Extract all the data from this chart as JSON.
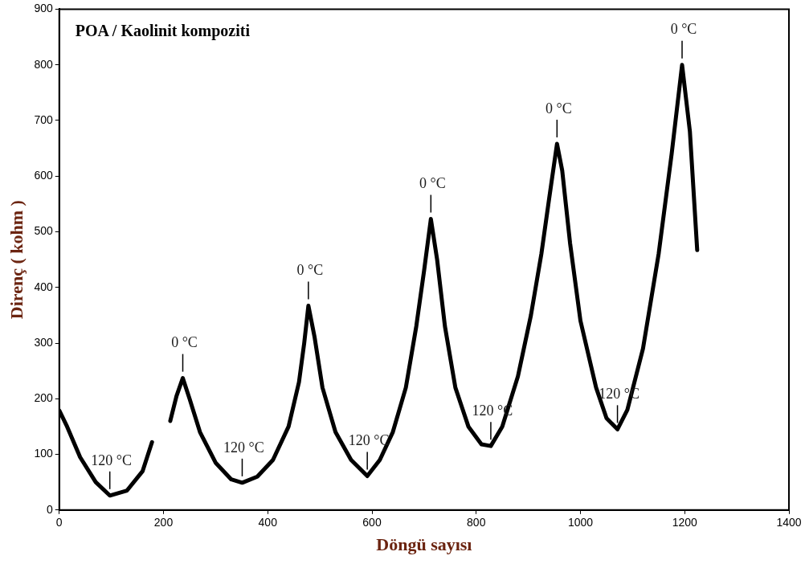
{
  "chart_data": {
    "type": "line",
    "title": "POA / Kaolinit kompoziti",
    "xlabel": "Döngü sayısı",
    "ylabel": "Direnç ( kohm )",
    "x": [
      0,
      15,
      40,
      70,
      97,
      130,
      160,
      178,
      195,
      213,
      225,
      237,
      250,
      270,
      300,
      330,
      351,
      380,
      410,
      440,
      460,
      470,
      478,
      490,
      505,
      530,
      560,
      591,
      615,
      640,
      665,
      685,
      700,
      713,
      725,
      740,
      760,
      785,
      810,
      828,
      850,
      880,
      905,
      925,
      940,
      955,
      965,
      980,
      1000,
      1030,
      1050,
      1071,
      1090,
      1120,
      1150,
      1175,
      1195,
      1210,
      1224
    ],
    "series": [
      {
        "color": "#000000",
        "values": [
          179,
          150,
          95,
          50,
          26,
          35,
          70,
          122,
          null,
          160,
          205,
          237,
          200,
          140,
          85,
          55,
          49,
          60,
          90,
          150,
          230,
          300,
          367,
          310,
          220,
          140,
          90,
          61,
          90,
          140,
          220,
          330,
          430,
          523,
          450,
          330,
          220,
          150,
          118,
          115,
          150,
          240,
          350,
          460,
          560,
          658,
          610,
          480,
          340,
          220,
          165,
          145,
          180,
          290,
          460,
          640,
          800,
          680,
          467
        ]
      }
    ],
    "xlim": [
      0,
      1400
    ],
    "xticks": [
      0,
      200,
      400,
      600,
      800,
      1000,
      1200,
      1400
    ],
    "ylim": [
      0,
      900
    ],
    "yticks": [
      0,
      100,
      200,
      300,
      400,
      500,
      600,
      700,
      800,
      900
    ],
    "grid": false,
    "legend": false,
    "annotations": [
      {
        "text": "0 °C",
        "x": 237,
        "y": 237
      },
      {
        "text": "0 °C",
        "x": 478,
        "y": 367
      },
      {
        "text": "0 °C",
        "x": 713,
        "y": 523
      },
      {
        "text": "0 °C",
        "x": 955,
        "y": 658
      },
      {
        "text": "0 °C",
        "x": 1195,
        "y": 800
      },
      {
        "text": "120 °C",
        "x": 97,
        "y": 26
      },
      {
        "text": "120 °C",
        "x": 351,
        "y": 49
      },
      {
        "text": "120 °C",
        "x": 591,
        "y": 61
      },
      {
        "text": "120 °C",
        "x": 828,
        "y": 115
      },
      {
        "text": "120 °C",
        "x": 1071,
        "y": 145
      }
    ]
  }
}
